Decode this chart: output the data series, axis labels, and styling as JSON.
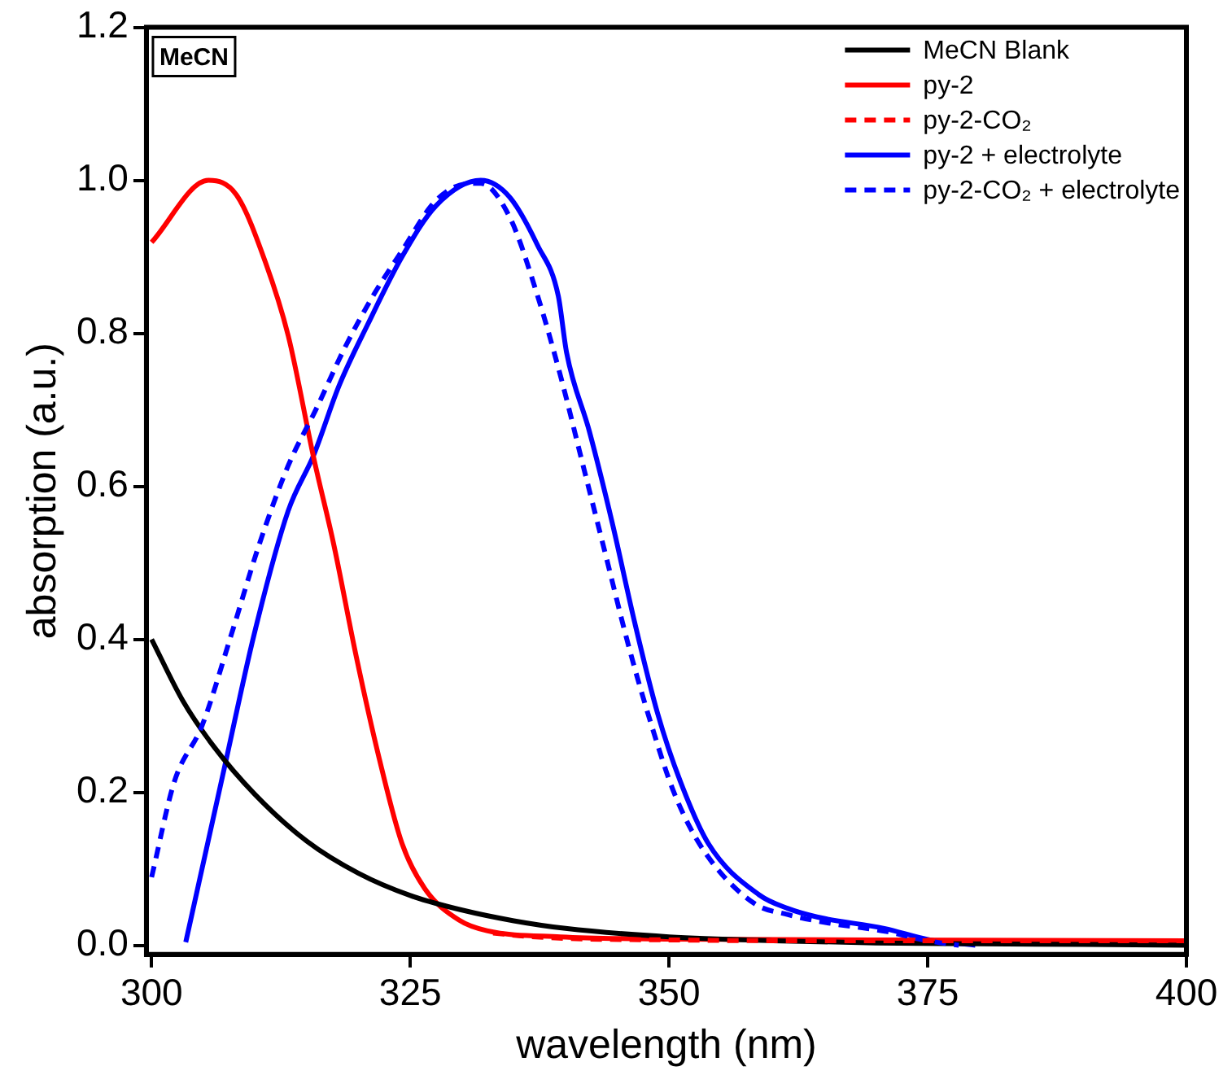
{
  "chart_data": {
    "type": "line",
    "xlabel": "wavelength (nm)",
    "ylabel": "absorption (a.u.)",
    "annotations": [
      "MeCN"
    ],
    "xlim": [
      299.5,
      400
    ],
    "xticks": [
      300,
      325,
      350,
      375,
      400
    ],
    "ylim": [
      -0.012,
      1.2
    ],
    "yticks": [
      {
        "value": 0,
        "label": "0.0"
      },
      {
        "value": 0.2,
        "label": "0.2"
      },
      {
        "value": 0.4,
        "label": "0.4"
      },
      {
        "value": 0.6,
        "label": "0.6"
      },
      {
        "value": 0.8,
        "label": "0.8"
      },
      {
        "value": 1,
        "label": "1.0"
      },
      {
        "value": 1.2,
        "label": "1.2"
      }
    ],
    "grid": false,
    "legend": "top right",
    "marker": "none",
    "series": [
      {
        "name": "MeCN Blank",
        "color": "#000000",
        "line_style": "solid",
        "x": [
          300,
          303,
          306,
          310,
          315,
          320,
          325,
          330,
          335,
          340,
          350,
          360,
          370,
          380,
          390,
          400
        ],
        "values": [
          0.4,
          0.32,
          0.26,
          0.197,
          0.136,
          0.094,
          0.065,
          0.046,
          0.032,
          0.022,
          0.011,
          0.006,
          0.003,
          0.002,
          0.001,
          0
        ]
      },
      {
        "name": "py-2",
        "color": "#ff0000",
        "line_style": "solid",
        "x": [
          300,
          305.5,
          308.2,
          311,
          313.2,
          315.7,
          317.6,
          319.8,
          322,
          324.2,
          326.4,
          329.7,
          332.4,
          339.5,
          350,
          370,
          400
        ],
        "values": [
          0.919,
          1.0,
          0.981,
          0.893,
          0.797,
          0.635,
          0.524,
          0.376,
          0.244,
          0.133,
          0.074,
          0.033,
          0.019,
          0.011,
          0.008,
          0.007,
          0.006
        ]
      },
      {
        "name": "py-2-CO₂",
        "color": "#ff0000",
        "line_style": "dashed",
        "x": [
          333,
          336,
          340,
          350,
          360,
          380,
          400
        ],
        "values": [
          0.016,
          0.012,
          0.009,
          0.007,
          0.006,
          0.006,
          0.006
        ]
      },
      {
        "name": "py-2 + electrolyte",
        "color": "#0000ff",
        "line_style": "solid",
        "x": [
          303.3,
          307.1,
          309.9,
          313.2,
          315.7,
          318.1,
          320.9,
          324.2,
          327.5,
          331.8,
          334.6,
          337.3,
          339.3,
          340.1,
          342.3,
          344.5,
          346.7,
          348.9,
          351.1,
          353.8,
          358.7,
          361.5,
          364.3,
          370.8,
          375.2,
          379.6
        ],
        "values": [
          0.004,
          0.236,
          0.406,
          0.568,
          0.642,
          0.731,
          0.812,
          0.9,
          0.967,
          1.0,
          0.978,
          0.915,
          0.849,
          0.775,
          0.672,
          0.553,
          0.421,
          0.303,
          0.214,
          0.133,
          0.066,
          0.048,
          0.037,
          0.022,
          0.007,
          0
        ]
      },
      {
        "name": "py-2-CO₂ + electrolyte",
        "color": "#0000ff",
        "line_style": "dashed",
        "x": [
          300,
          302.2,
          304.9,
          307.7,
          310.4,
          313.2,
          315.9,
          318.7,
          321.4,
          324.2,
          327.5,
          330.8,
          331.8,
          334.6,
          337.3,
          339.5,
          341.7,
          343.9,
          346.1,
          348.3,
          350.5,
          353.3,
          358.2,
          361.5,
          365,
          371,
          375,
          378
        ],
        "values": [
          0.089,
          0.214,
          0.288,
          0.406,
          0.524,
          0.627,
          0.701,
          0.782,
          0.849,
          0.908,
          0.974,
          0.996,
          0.996,
          0.952,
          0.849,
          0.745,
          0.627,
          0.509,
          0.391,
          0.288,
          0.199,
          0.125,
          0.055,
          0.04,
          0.03,
          0.018,
          0.006,
          0
        ]
      }
    ]
  }
}
